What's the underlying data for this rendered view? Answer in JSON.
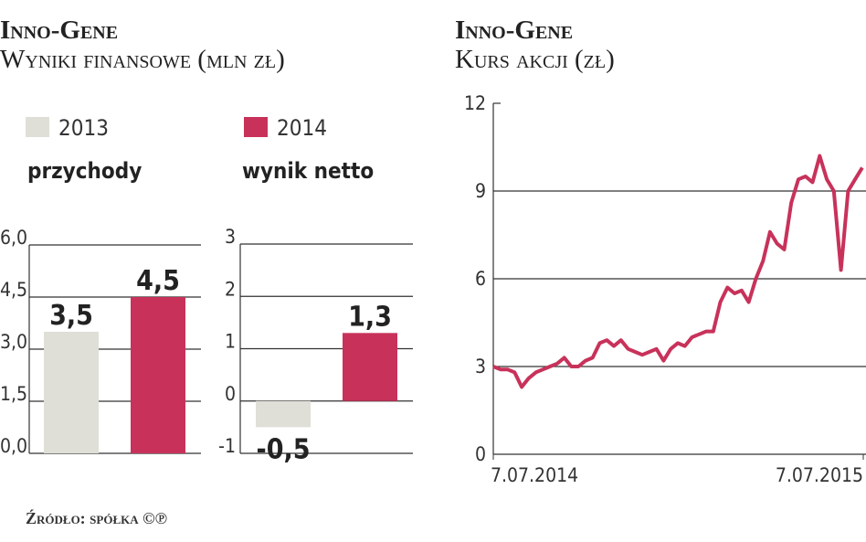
{
  "header": {
    "title": "Inno-Gene",
    "subtitle": "Wyniki finansowe (mln zł)"
  },
  "legend": [
    {
      "name": "2013",
      "color": "#dfdfd7"
    },
    {
      "name": "2014",
      "color": "#c8325a"
    }
  ],
  "source": "Źródło: spółka ©℗",
  "chart_data": [
    {
      "type": "bar",
      "title": "przychody",
      "series": [
        {
          "color": "#dfdfd7",
          "values": [
            3.5
          ],
          "value_labels": [
            "3,5"
          ]
        },
        {
          "color": "#c8325a",
          "values": [
            4.5
          ],
          "value_labels": [
            "4,5"
          ]
        }
      ],
      "ylim": [
        0,
        6
      ],
      "yticks": [
        {
          "value": 0,
          "label": "0,0"
        },
        {
          "value": 1.5,
          "label": "1,5"
        },
        {
          "value": 3,
          "label": "3,0"
        },
        {
          "value": 4.5,
          "label": "4,5"
        },
        {
          "value": 6,
          "label": "6,0"
        }
      ],
      "grid": true
    },
    {
      "type": "bar",
      "title": "wynik netto",
      "series": [
        {
          "color": "#dfdfd7",
          "values": [
            -0.5
          ],
          "value_labels": [
            "-0,5"
          ]
        },
        {
          "color": "#c8325a",
          "values": [
            1.3
          ],
          "value_labels": [
            "1,3"
          ]
        }
      ],
      "ylim": [
        -1,
        3
      ],
      "yticks": [
        -1,
        0,
        1,
        2,
        3
      ],
      "grid": true
    },
    {
      "type": "line",
      "title": "Inno-Gene",
      "subtitle": "Kurs akcji (zł)",
      "x": [
        "2014-07-07",
        "2014-07-14",
        "2014-07-21",
        "2014-07-28",
        "2014-08-04",
        "2014-08-11",
        "2014-08-18",
        "2014-08-25",
        "2014-09-01",
        "2014-09-08",
        "2014-09-15",
        "2014-09-22",
        "2014-09-29",
        "2014-10-06",
        "2014-10-13",
        "2014-10-20",
        "2014-10-27",
        "2014-11-03",
        "2014-11-10",
        "2014-11-17",
        "2014-11-24",
        "2014-12-01",
        "2014-12-08",
        "2014-12-15",
        "2014-12-22",
        "2014-12-29",
        "2015-01-05",
        "2015-01-12",
        "2015-01-19",
        "2015-01-26",
        "2015-02-02",
        "2015-02-09",
        "2015-02-16",
        "2015-02-23",
        "2015-03-02",
        "2015-03-09",
        "2015-03-16",
        "2015-03-23",
        "2015-03-30",
        "2015-04-06",
        "2015-04-13",
        "2015-04-20",
        "2015-04-27",
        "2015-05-04",
        "2015-05-11",
        "2015-05-18",
        "2015-05-25",
        "2015-06-01",
        "2015-06-08",
        "2015-06-15",
        "2015-06-22",
        "2015-06-29",
        "2015-07-06"
      ],
      "series": [
        {
          "color": "#c8325a",
          "values": [
            3.0,
            2.9,
            2.9,
            2.8,
            2.3,
            2.6,
            2.8,
            2.9,
            3.0,
            3.1,
            3.3,
            3.0,
            3.0,
            3.2,
            3.3,
            3.8,
            3.9,
            3.7,
            3.9,
            3.6,
            3.5,
            3.4,
            3.5,
            3.6,
            3.2,
            3.6,
            3.8,
            3.7,
            4.0,
            4.1,
            4.2,
            4.2,
            5.2,
            5.7,
            5.5,
            5.6,
            5.2,
            6.0,
            6.6,
            7.6,
            7.2,
            7.0,
            8.6,
            9.4,
            9.5,
            9.3,
            10.2,
            9.4,
            9.0,
            6.3,
            9.0,
            9.4,
            9.8
          ]
        }
      ],
      "xlim": [
        "2014-07-07",
        "2015-07-07"
      ],
      "xticks": [
        {
          "value": "2014-07-07",
          "label": "7.07.2014"
        },
        {
          "value": "2015-07-07",
          "label": "7.07.2015"
        }
      ],
      "ylim": [
        0,
        12
      ],
      "yticks": [
        0,
        3,
        6,
        9,
        12
      ],
      "grid": true
    }
  ]
}
